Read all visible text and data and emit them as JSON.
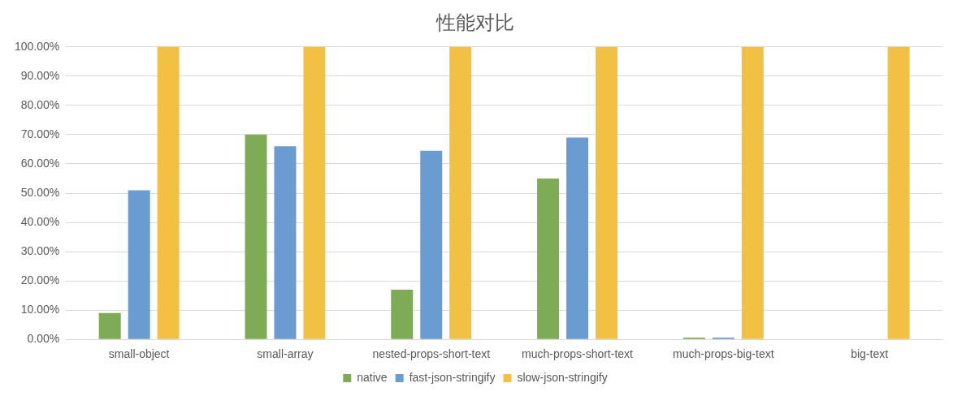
{
  "chart_data": {
    "type": "bar",
    "title": "性能对比",
    "categories": [
      "small-object",
      "small-array",
      "nested-props-short-text",
      "much-props-short-text",
      "much-props-big-text",
      "big-text"
    ],
    "series": [
      {
        "name": "native",
        "color": "#7eab55",
        "values": [
          9,
          70,
          17,
          55,
          0.6,
          0
        ]
      },
      {
        "name": "fast-json-stringify",
        "color": "#6a9bd1",
        "values": [
          51,
          66,
          64.5,
          69,
          0.6,
          0
        ]
      },
      {
        "name": "slow-json-stringify",
        "color": "#f2c143",
        "values": [
          100,
          100,
          100,
          100,
          100,
          100
        ]
      }
    ],
    "ylim": [
      0,
      100
    ],
    "yticks": [
      {
        "value": 0,
        "label": "0.00%"
      },
      {
        "value": 10,
        "label": "10.00%"
      },
      {
        "value": 20,
        "label": "20.00%"
      },
      {
        "value": 30,
        "label": "30.00%"
      },
      {
        "value": 40,
        "label": "40.00%"
      },
      {
        "value": 50,
        "label": "50.00%"
      },
      {
        "value": 60,
        "label": "60.00%"
      },
      {
        "value": 70,
        "label": "70.00%"
      },
      {
        "value": 80,
        "label": "80.00%"
      },
      {
        "value": 90,
        "label": "90.00%"
      },
      {
        "value": 100,
        "label": "100.00%"
      }
    ],
    "grid": "y",
    "legend": "bottom"
  }
}
